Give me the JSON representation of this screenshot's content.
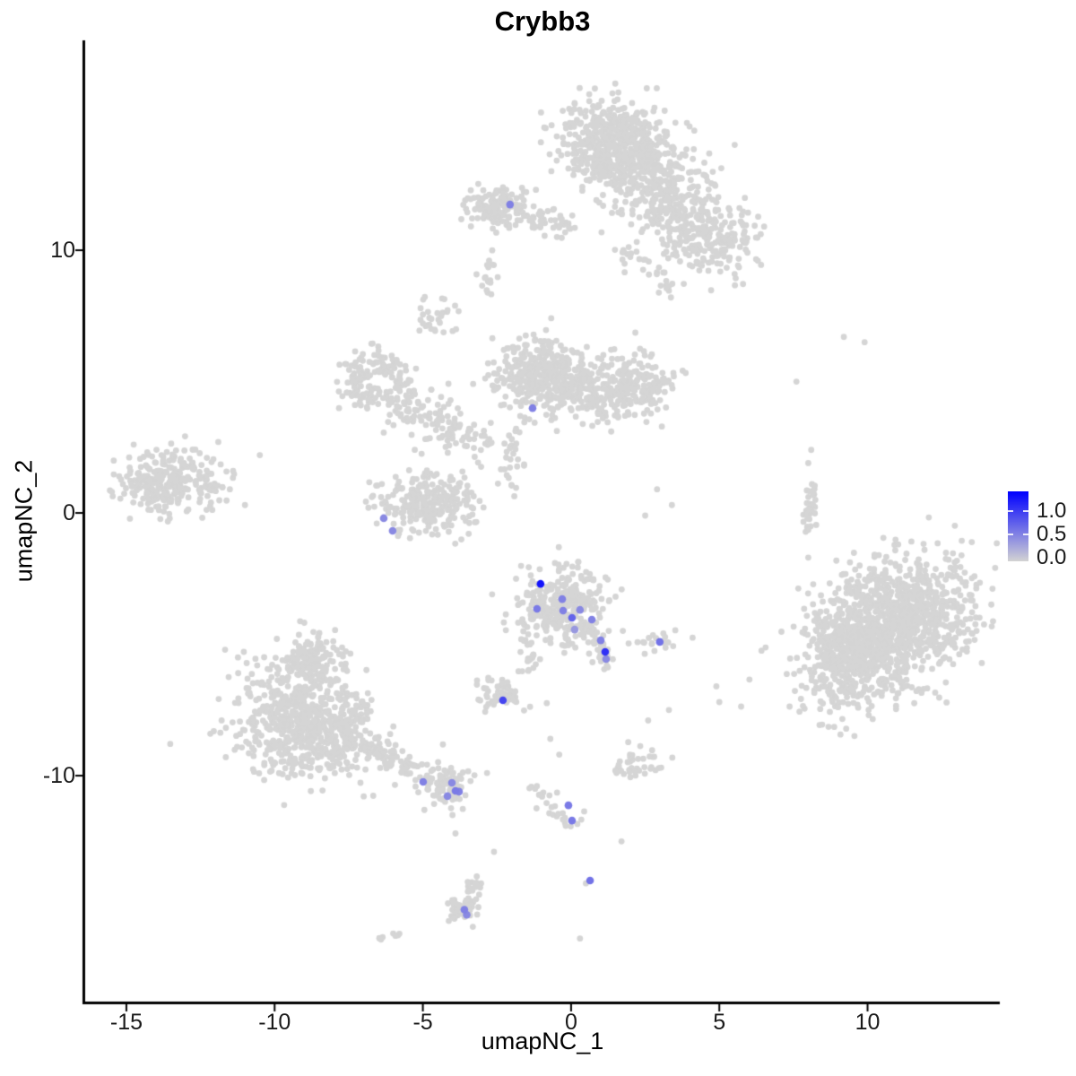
{
  "title": "Crybb3",
  "axes": {
    "x": {
      "label": "umapNC_1",
      "tick_labels": [
        "-15",
        "-10",
        "-5",
        "0",
        "5",
        "10"
      ],
      "tick_values": [
        -15,
        -10,
        -5,
        0,
        5,
        10
      ]
    },
    "y": {
      "label": "umapNC_2",
      "tick_labels": [
        "10",
        "0",
        "-10"
      ],
      "tick_values": [
        10,
        0,
        -10
      ]
    }
  },
  "legend": {
    "tick_labels": [
      "1.0",
      "0.5",
      "0.0"
    ],
    "tick_values": [
      1.0,
      0.5,
      0.0
    ],
    "bar_tick_values": [
      1.0,
      0.5
    ],
    "max_value": 1.42,
    "low_color": "#D3D3D3",
    "high_color": "#0000FF"
  },
  "chart_data": {
    "type": "scatter",
    "title": "Crybb3",
    "xlabel": "umapNC_1",
    "ylabel": "umapNC_2",
    "xlim": [
      -16.39,
      14.46
    ],
    "ylim": [
      -18.6,
      17.99
    ],
    "grid": false,
    "legend_position": "right",
    "point_colors": {
      "background": "#D5D5D5",
      "scale_low": "#D3D3D3",
      "scale_high": "#0000FF",
      "scale_max": 1.42
    },
    "background_clusters": [
      {
        "name": "top-main",
        "type": "blob",
        "cx": 1.4,
        "cy": 14.3,
        "sx": 0.85,
        "sy": 0.75,
        "n": 420
      },
      {
        "name": "top-main-lower",
        "type": "blob",
        "cx": 2.2,
        "cy": 13.2,
        "sx": 1.0,
        "sy": 0.7,
        "n": 300
      },
      {
        "name": "top-right-arm",
        "type": "blob",
        "cx": 3.6,
        "cy": 11.6,
        "sx": 0.8,
        "sy": 0.6,
        "n": 180
      },
      {
        "name": "top-right-arm-end",
        "type": "blob",
        "cx": 4.9,
        "cy": 10.3,
        "sx": 0.8,
        "sy": 0.65,
        "n": 170
      },
      {
        "name": "top-below-dots",
        "type": "blob",
        "cx": 3.2,
        "cy": 8.8,
        "sx": 0.3,
        "sy": 0.4,
        "n": 14
      },
      {
        "name": "top-bridge-dots",
        "type": "blob",
        "cx": 2.0,
        "cy": 9.6,
        "sx": 0.55,
        "sy": 0.4,
        "n": 18
      },
      {
        "name": "topleft-main",
        "type": "blob",
        "cx": -2.4,
        "cy": 11.6,
        "sx": 0.55,
        "sy": 0.42,
        "n": 150
      },
      {
        "name": "topleft-tail",
        "type": "line",
        "x1": -1.4,
        "y1": 11.3,
        "x2": 0.1,
        "y2": 10.9,
        "s": 0.22,
        "n": 45
      },
      {
        "name": "comma-blob",
        "type": "blob",
        "cx": -2.8,
        "cy": 9.0,
        "sx": 0.2,
        "sy": 0.33,
        "n": 18
      },
      {
        "name": "small-blob-upperleft",
        "type": "blob",
        "cx": -4.5,
        "cy": 7.3,
        "sx": 0.35,
        "sy": 0.4,
        "n": 30
      },
      {
        "name": "ring-cluster",
        "type": "ring",
        "cx": -6.5,
        "cy": 5.0,
        "r": 0.85,
        "sr": 0.28,
        "n": 160
      },
      {
        "name": "ring-blob",
        "type": "blob",
        "cx": -5.3,
        "cy": 3.7,
        "sx": 0.65,
        "sy": 0.5,
        "n": 80
      },
      {
        "name": "ring-chain",
        "type": "line",
        "x1": -4.4,
        "y1": 3.3,
        "x2": -2.8,
        "y2": 2.4,
        "s": 0.3,
        "n": 50
      },
      {
        "name": "mid-lower-strand",
        "type": "line",
        "x1": -1.8,
        "y1": 3.2,
        "x2": -2.2,
        "y2": 0.8,
        "s": 0.25,
        "n": 30
      },
      {
        "name": "mid-main",
        "type": "blob",
        "cx": -1.0,
        "cy": 5.3,
        "sx": 0.8,
        "sy": 0.75,
        "n": 340
      },
      {
        "name": "mid-right",
        "type": "blob",
        "cx": 0.9,
        "cy": 4.7,
        "sx": 0.85,
        "sy": 0.6,
        "n": 220
      },
      {
        "name": "mid-right-lobe",
        "type": "blob",
        "cx": 2.4,
        "cy": 4.9,
        "sx": 0.5,
        "sy": 0.55,
        "n": 120
      },
      {
        "name": "left-main",
        "type": "blob",
        "cx": -13.6,
        "cy": 1.2,
        "sx": 0.78,
        "sy": 0.62,
        "n": 260
      },
      {
        "name": "left-edge-dots",
        "type": "blob",
        "cx": -12.2,
        "cy": 1.0,
        "sx": 0.45,
        "sy": 0.7,
        "n": 30
      },
      {
        "name": "midlow-main",
        "type": "blob",
        "cx": -4.9,
        "cy": 0.35,
        "sx": 0.85,
        "sy": 0.55,
        "n": 260
      },
      {
        "name": "right-strand",
        "type": "line",
        "x1": 8.2,
        "y1": 1.1,
        "x2": 7.9,
        "y2": -0.9,
        "s": 0.12,
        "n": 35
      },
      {
        "name": "right-main",
        "type": "blob",
        "cx": 10.7,
        "cy": -4.4,
        "sx": 1.6,
        "sy": 1.1,
        "rot": 40,
        "n": 1250
      },
      {
        "name": "right-edge",
        "type": "blob",
        "cx": 9.2,
        "cy": -5.6,
        "sx": 0.6,
        "sy": 0.85,
        "n": 180
      },
      {
        "name": "center-main",
        "type": "blob",
        "cx": -0.35,
        "cy": -3.6,
        "sx": 0.72,
        "sy": 0.68,
        "n": 300
      },
      {
        "name": "center-tail-right",
        "type": "line",
        "x1": 0.8,
        "y1": -4.7,
        "x2": 1.25,
        "y2": -5.8,
        "s": 0.18,
        "n": 35
      },
      {
        "name": "center-tail-left",
        "type": "line",
        "x1": -1.5,
        "y1": -4.4,
        "x2": -1.3,
        "y2": -6.2,
        "s": 0.15,
        "n": 25
      },
      {
        "name": "dots-right-of-center",
        "type": "blob",
        "cx": 3.0,
        "cy": -4.9,
        "sx": 0.45,
        "sy": 0.2,
        "n": 20
      },
      {
        "name": "small-mid-cluster",
        "type": "blob",
        "cx": -2.3,
        "cy": -6.8,
        "sx": 0.42,
        "sy": 0.33,
        "n": 55
      },
      {
        "name": "botleft-top",
        "type": "blob",
        "cx": -8.8,
        "cy": -5.6,
        "sx": 0.55,
        "sy": 0.5,
        "n": 130
      },
      {
        "name": "botleft-mid",
        "type": "blob",
        "cx": -9.2,
        "cy": -7.2,
        "sx": 0.95,
        "sy": 0.8,
        "n": 300
      },
      {
        "name": "botleft-bottom",
        "type": "blob",
        "cx": -9.0,
        "cy": -8.8,
        "sx": 1.15,
        "sy": 0.7,
        "n": 310
      },
      {
        "name": "botleft-right-edge",
        "type": "blob",
        "cx": -7.4,
        "cy": -8.2,
        "sx": 0.5,
        "sy": 0.8,
        "n": 110
      },
      {
        "name": "botleft-chain",
        "type": "line",
        "x1": -6.9,
        "y1": -8.8,
        "x2": -5.2,
        "y2": -9.9,
        "s": 0.25,
        "n": 70
      },
      {
        "name": "bot-sub-cluster",
        "type": "blob",
        "cx": -4.3,
        "cy": -10.4,
        "sx": 0.45,
        "sy": 0.35,
        "n": 85
      },
      {
        "name": "bottom-strand",
        "type": "line",
        "x1": -1.15,
        "y1": -10.5,
        "x2": 0.1,
        "y2": -11.9,
        "s": 0.18,
        "n": 28
      },
      {
        "name": "dots-bottom-right",
        "type": "blob",
        "cx": 2.1,
        "cy": -9.6,
        "sx": 0.45,
        "sy": 0.3,
        "n": 40
      },
      {
        "name": "bottom-comma-strand",
        "type": "line",
        "x1": -3.2,
        "y1": -13.9,
        "x2": -3.6,
        "y2": -15.0,
        "s": 0.15,
        "n": 25
      },
      {
        "name": "bottom-comma-blob",
        "type": "blob",
        "cx": -3.7,
        "cy": -15.1,
        "sx": 0.3,
        "sy": 0.25,
        "n": 40
      },
      {
        "name": "bottom-dash",
        "type": "blob",
        "cx": -6.1,
        "cy": -16.1,
        "sx": 0.25,
        "sy": 0.12,
        "n": 8
      }
    ],
    "background_singles": [
      [
        -11.9,
        2.7
      ],
      [
        -11.4,
        1.6
      ],
      [
        -11.0,
        0.3
      ],
      [
        -10.5,
        2.2
      ],
      [
        6.3,
        9.6
      ],
      [
        9.2,
        6.7
      ],
      [
        9.9,
        6.5
      ],
      [
        7.6,
        5.0
      ],
      [
        8.1,
        2.4
      ],
      [
        8.0,
        1.9
      ],
      [
        8.0,
        -1.7
      ],
      [
        2.9,
        0.9
      ],
      [
        3.4,
        0.3
      ],
      [
        2.5,
        -0.1
      ],
      [
        4.9,
        -6.6
      ],
      [
        5.0,
        -7.2
      ],
      [
        3.3,
        -7.5
      ],
      [
        2.6,
        -7.9
      ],
      [
        -0.82,
        -7.24
      ],
      [
        -0.7,
        -8.6
      ],
      [
        -0.4,
        -9.2
      ],
      [
        1.7,
        -12.5
      ],
      [
        0.5,
        -14.1
      ],
      [
        -4.0,
        -11.5
      ],
      [
        -3.9,
        -12.2
      ],
      [
        -2.6,
        -12.9
      ],
      [
        0.3,
        -16.2
      ]
    ],
    "expressing_cells": [
      {
        "x": -1.03,
        "y": -2.7,
        "value": 1.3
      },
      {
        "x": -0.3,
        "y": -3.28,
        "value": 0.55
      },
      {
        "x": -1.15,
        "y": -3.65,
        "value": 0.6
      },
      {
        "x": -0.27,
        "y": -3.72,
        "value": 0.55
      },
      {
        "x": 0.3,
        "y": -3.69,
        "value": 0.5
      },
      {
        "x": 0.03,
        "y": -3.99,
        "value": 0.75
      },
      {
        "x": 0.7,
        "y": -4.06,
        "value": 0.55
      },
      {
        "x": 0.12,
        "y": -4.44,
        "value": 0.4
      },
      {
        "x": 1.0,
        "y": -4.85,
        "value": 0.55
      },
      {
        "x": 1.15,
        "y": -5.29,
        "value": 1.1
      },
      {
        "x": 1.18,
        "y": -5.56,
        "value": 0.5
      },
      {
        "x": 2.99,
        "y": -4.91,
        "value": 0.65
      },
      {
        "x": -2.06,
        "y": 11.74,
        "value": 0.55
      },
      {
        "x": -1.3,
        "y": 3.99,
        "value": 0.55
      },
      {
        "x": -6.32,
        "y": -0.2,
        "value": 0.5
      },
      {
        "x": -6.02,
        "y": -0.68,
        "value": 0.5
      },
      {
        "x": -2.3,
        "y": -7.13,
        "value": 0.95
      },
      {
        "x": -4.99,
        "y": -10.24,
        "value": 0.55
      },
      {
        "x": -4.02,
        "y": -10.27,
        "value": 0.5
      },
      {
        "x": -3.9,
        "y": -10.58,
        "value": 0.6
      },
      {
        "x": -3.78,
        "y": -10.61,
        "value": 0.55
      },
      {
        "x": -4.17,
        "y": -10.78,
        "value": 0.5
      },
      {
        "x": -0.09,
        "y": -11.13,
        "value": 0.6
      },
      {
        "x": 0.03,
        "y": -11.71,
        "value": 0.6
      },
      {
        "x": 0.64,
        "y": -13.99,
        "value": 0.65
      },
      {
        "x": -3.6,
        "y": -15.1,
        "value": 0.55
      },
      {
        "x": -3.52,
        "y": -15.3,
        "value": 0.5
      }
    ]
  }
}
